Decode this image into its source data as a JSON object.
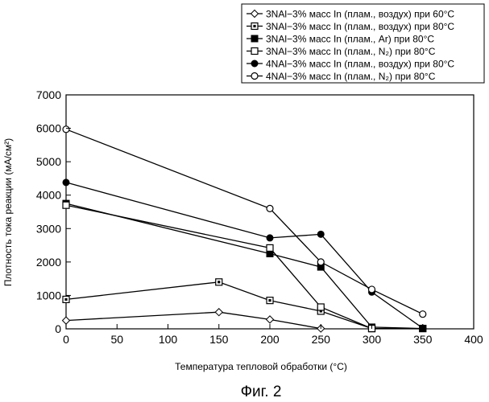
{
  "chart_data": {
    "type": "line",
    "title": "",
    "xlabel": "Температура тепловой обработки (°C)",
    "ylabel": "Плотность тока реакции (мА/см²)",
    "xlim": [
      0,
      400
    ],
    "ylim": [
      0,
      7000
    ],
    "x_ticks": [
      0,
      50,
      100,
      150,
      200,
      250,
      300,
      350,
      400
    ],
    "y_ticks": [
      0,
      1000,
      2000,
      3000,
      4000,
      5000,
      6000,
      7000
    ],
    "grid": false,
    "legend_position": "top-right",
    "caption": "Фиг. 2",
    "series": [
      {
        "name": "3NAl−3% масс In (плам., воздух) при 60°C",
        "marker": "diamond-open",
        "points": [
          [
            0,
            250
          ],
          [
            150,
            500
          ],
          [
            200,
            280
          ],
          [
            250,
            10
          ]
        ]
      },
      {
        "name": "3NAl−3% масс In (плам., воздух) при 80°C",
        "marker": "square-dotted",
        "points": [
          [
            0,
            880
          ],
          [
            150,
            1400
          ],
          [
            200,
            850
          ],
          [
            250,
            530
          ],
          [
            300,
            10
          ],
          [
            350,
            10
          ]
        ]
      },
      {
        "name": "3NAl−3% масс In (плам., Ar) при 80°C",
        "marker": "square-filled",
        "points": [
          [
            0,
            3750
          ],
          [
            200,
            2250
          ],
          [
            250,
            1850
          ],
          [
            300,
            50
          ],
          [
            350,
            10
          ]
        ]
      },
      {
        "name": "3NAl−3% масс In (плам., N₂) при 80°C",
        "marker": "square-open",
        "points": [
          [
            0,
            3700
          ],
          [
            200,
            2420
          ],
          [
            250,
            650
          ],
          [
            300,
            10
          ]
        ]
      },
      {
        "name": "4NAl−3% масс In (плам., воздух) при 80°C",
        "marker": "circle-filled",
        "points": [
          [
            0,
            4380
          ],
          [
            200,
            2720
          ],
          [
            250,
            2830
          ],
          [
            300,
            1100
          ],
          [
            350,
            20
          ]
        ]
      },
      {
        "name": "4NAl−3% масс In (плам., N₂) при 80°C",
        "marker": "circle-open",
        "points": [
          [
            0,
            5970
          ],
          [
            200,
            3600
          ],
          [
            250,
            2000
          ],
          [
            300,
            1180
          ],
          [
            350,
            440
          ]
        ]
      }
    ]
  }
}
